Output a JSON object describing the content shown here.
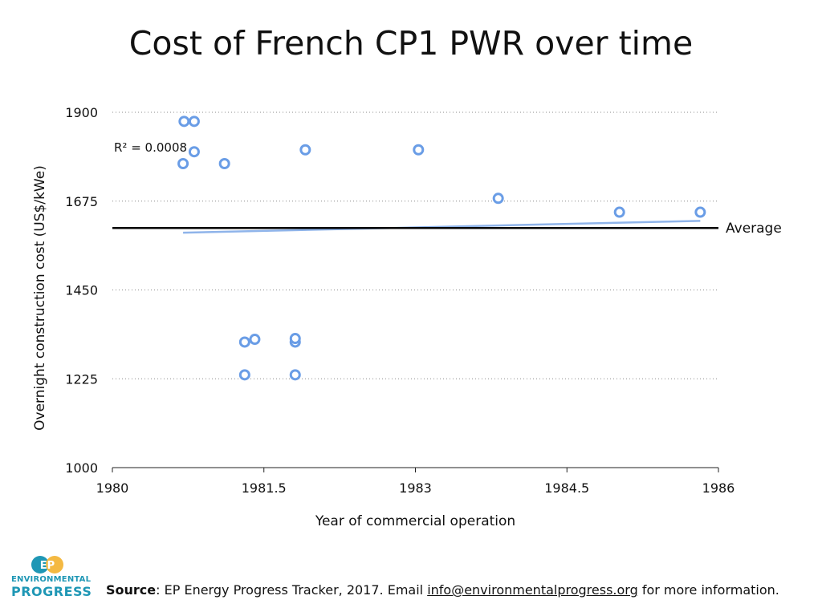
{
  "chart_data": {
    "type": "scatter",
    "title": "Cost of French CP1 PWR over time",
    "xlabel": "Year of commercial operation",
    "ylabel": "Overnight construction cost (US$/kWe)",
    "xlim": [
      1980,
      1986
    ],
    "ylim": [
      1000,
      1900
    ],
    "x_ticks": [
      "1980",
      "1981.5",
      "1983",
      "1984.5",
      "1986"
    ],
    "y_ticks": [
      "1000",
      "1225",
      "1450",
      "1675",
      "1900"
    ],
    "grid": "horizontal dotted",
    "point_color": "#6a9de6",
    "points": [
      {
        "x": 1980.71,
        "y": 1877
      },
      {
        "x": 1980.81,
        "y": 1877
      },
      {
        "x": 1980.81,
        "y": 1800
      },
      {
        "x": 1980.7,
        "y": 1770
      },
      {
        "x": 1981.11,
        "y": 1770
      },
      {
        "x": 1981.91,
        "y": 1805
      },
      {
        "x": 1983.03,
        "y": 1805
      },
      {
        "x": 1983.82,
        "y": 1682
      },
      {
        "x": 1985.02,
        "y": 1647
      },
      {
        "x": 1985.82,
        "y": 1647
      },
      {
        "x": 1981.31,
        "y": 1318
      },
      {
        "x": 1981.41,
        "y": 1325
      },
      {
        "x": 1981.81,
        "y": 1318
      },
      {
        "x": 1981.81,
        "y": 1327
      },
      {
        "x": 1981.31,
        "y": 1235
      },
      {
        "x": 1981.81,
        "y": 1235
      }
    ],
    "trendline": {
      "color": "#8fb4ea",
      "x": [
        1980.7,
        1985.82
      ],
      "y": [
        1595,
        1625
      ],
      "annotation": "R² = 0.0008"
    },
    "average_line": {
      "value": 1607,
      "label": "Average",
      "color": "#000000"
    }
  },
  "footer": {
    "source_label": "Source",
    "source_text": ": EP Energy Progress Tracker, 2017. Email ",
    "email": "info@environmentalprogress.org",
    "suffix": " for more information."
  },
  "logo": {
    "mark": "EP",
    "line1": "ENVIRONMENTAL",
    "line2": "PROGRESS",
    "color_primary": "#1f97b5",
    "color_accent": "#f4b942"
  }
}
